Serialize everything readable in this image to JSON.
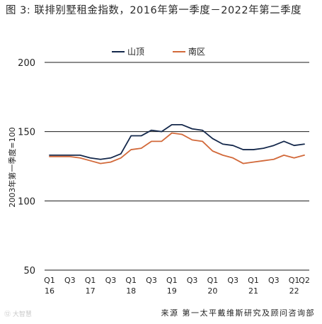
{
  "title": "图 3: 联排别墅租金指数，2016年第一季度－2022年第二季度",
  "source": "来源 第一太平戴维斯研究及顾问咨询部",
  "watermark": "⑫ 大智慧",
  "colors": {
    "series1": "#14284b",
    "series2": "#d2693a",
    "grid": "#1a1a1a",
    "text": "#222222"
  },
  "chart_data": {
    "type": "line",
    "title": "图 3: 联排别墅租金指数，2016年第一季度－2022年第二季度",
    "ylabel": "2003年第一季度=100",
    "ylim": [
      50,
      200
    ],
    "yticks": [
      50,
      100,
      150,
      200
    ],
    "grid": true,
    "legend_position": "top-center",
    "x": [
      "2016Q1",
      "2016Q2",
      "2016Q3",
      "2016Q4",
      "2017Q1",
      "2017Q2",
      "2017Q3",
      "2017Q4",
      "2018Q1",
      "2018Q2",
      "2018Q3",
      "2018Q4",
      "2019Q1",
      "2019Q2",
      "2019Q3",
      "2019Q4",
      "2020Q1",
      "2020Q2",
      "2020Q3",
      "2020Q4",
      "2021Q1",
      "2021Q2",
      "2021Q3",
      "2021Q4",
      "2022Q1",
      "2022Q2"
    ],
    "xticklabels": [
      {
        "i": 0,
        "top": "Q1",
        "bottom": "16"
      },
      {
        "i": 2,
        "top": "Q3",
        "bottom": ""
      },
      {
        "i": 4,
        "top": "Q1",
        "bottom": "17"
      },
      {
        "i": 6,
        "top": "Q3",
        "bottom": ""
      },
      {
        "i": 8,
        "top": "Q1",
        "bottom": "18"
      },
      {
        "i": 10,
        "top": "Q3",
        "bottom": ""
      },
      {
        "i": 12,
        "top": "Q1",
        "bottom": "19"
      },
      {
        "i": 14,
        "top": "Q3",
        "bottom": ""
      },
      {
        "i": 16,
        "top": "Q1",
        "bottom": "20"
      },
      {
        "i": 18,
        "top": "Q3",
        "bottom": ""
      },
      {
        "i": 20,
        "top": "Q1",
        "bottom": "21"
      },
      {
        "i": 22,
        "top": "Q3",
        "bottom": ""
      },
      {
        "i": 24,
        "top": "Q1",
        "bottom": "22"
      },
      {
        "i": 25,
        "top": "Q2",
        "bottom": ""
      }
    ],
    "series": [
      {
        "name": "山顶",
        "color": "#14284b",
        "values": [
          133,
          133,
          133,
          133,
          131,
          130,
          131,
          134,
          147,
          147,
          151,
          150,
          155,
          155,
          152,
          151,
          145,
          141,
          140,
          137,
          137,
          138,
          140,
          143,
          140,
          141
        ]
      },
      {
        "name": "南区",
        "color": "#d2693a",
        "values": [
          132,
          132,
          132,
          131,
          129,
          127,
          128,
          131,
          137,
          138,
          143,
          143,
          149,
          148,
          144,
          143,
          136,
          133,
          131,
          127,
          128,
          129,
          130,
          133,
          131,
          133
        ]
      }
    ]
  }
}
